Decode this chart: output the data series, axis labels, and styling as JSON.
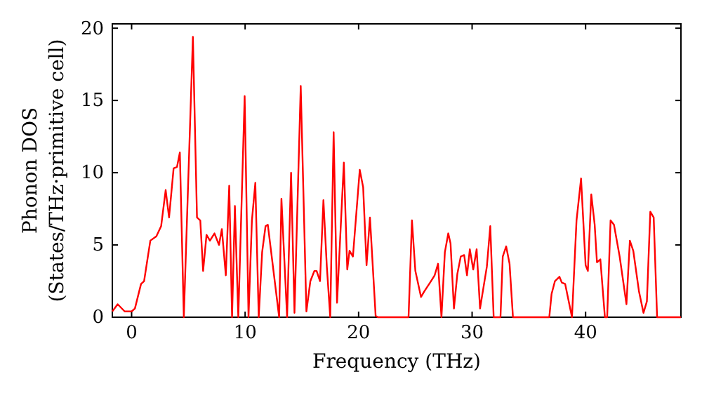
{
  "chart_data": {
    "type": "line",
    "xlabel": "Frequency (THz)",
    "ylabel": "Phonon DOS\n(States/THz·primitive cell)",
    "xlim": [
      -1.7,
      48.4
    ],
    "ylim": [
      0,
      20.3
    ],
    "xticks": [
      0,
      10,
      20,
      30,
      40
    ],
    "yticks": [
      0,
      5,
      10,
      15,
      20
    ],
    "marker": "none",
    "line_style": "solid",
    "series": [
      {
        "color": "#ff0000",
        "x": [
          -1.7,
          -1.23,
          -0.61,
          0,
          0.29,
          0.83,
          1.1,
          1.65,
          2.18,
          2.6,
          3.0,
          3.3,
          3.7,
          4.0,
          4.25,
          4.6,
          5.4,
          5.76,
          6.05,
          6.3,
          6.6,
          6.9,
          7.3,
          7.7,
          7.95,
          8.3,
          8.6,
          8.85,
          9.1,
          9.4,
          9.96,
          10.3,
          10.6,
          10.9,
          11.2,
          11.5,
          11.8,
          12.0,
          13.0,
          13.2,
          13.7,
          14.05,
          14.35,
          14.9,
          15.4,
          15.75,
          16.1,
          16.3,
          16.6,
          16.9,
          17.2,
          17.5,
          17.8,
          18.1,
          18.7,
          19.0,
          19.2,
          19.5,
          20.1,
          20.4,
          20.7,
          21.0,
          21.5,
          21.7,
          24.4,
          24.7,
          25.0,
          25.5,
          25.8,
          26.3,
          26.7,
          27.0,
          27.3,
          27.6,
          27.9,
          28.1,
          28.4,
          28.7,
          29.0,
          29.3,
          29.55,
          29.8,
          30.1,
          30.4,
          30.7,
          31.3,
          31.6,
          31.9,
          32.5,
          32.7,
          33.0,
          33.3,
          33.6,
          36.8,
          37.0,
          37.3,
          37.7,
          37.9,
          38.2,
          38.8,
          39.2,
          39.6,
          40.0,
          40.2,
          40.5,
          40.8,
          41.0,
          41.3,
          41.7,
          41.9,
          42.2,
          42.5,
          43.0,
          43.6,
          43.9,
          44.2,
          44.7,
          45.1,
          45.4,
          45.7,
          46.0,
          46.3,
          48.4
        ],
        "values": [
          0.4,
          0.9,
          0.4,
          0.4,
          0.6,
          2.3,
          2.5,
          5.3,
          5.6,
          6.3,
          8.8,
          6.9,
          10.3,
          10.4,
          11.4,
          0,
          19.4,
          6.9,
          6.7,
          3.2,
          5.7,
          5.3,
          5.8,
          5.0,
          6.1,
          2.9,
          9.1,
          0,
          7.7,
          0,
          15.3,
          0,
          6.7,
          9.3,
          0,
          4.5,
          6.3,
          6.4,
          0,
          8.2,
          0,
          10.0,
          0.3,
          16.0,
          0.4,
          2.5,
          3.2,
          3.2,
          2.5,
          8.1,
          3.5,
          0,
          12.8,
          1.0,
          10.7,
          3.3,
          4.6,
          4.2,
          10.2,
          9.0,
          3.6,
          6.9,
          0.1,
          0,
          0,
          6.7,
          3.2,
          1.4,
          1.8,
          2.4,
          2.9,
          3.7,
          0,
          4.5,
          5.8,
          5.1,
          0.6,
          3.0,
          4.2,
          4.3,
          2.9,
          4.7,
          3.3,
          4.7,
          0.6,
          3.5,
          6.3,
          0,
          0,
          4.2,
          4.9,
          3.7,
          0,
          0,
          1.6,
          2.5,
          2.8,
          2.4,
          2.3,
          0,
          6.7,
          9.6,
          3.6,
          3.2,
          8.5,
          6.4,
          3.8,
          4.0,
          0,
          0,
          6.7,
          6.4,
          4.2,
          0.9,
          5.3,
          4.6,
          1.8,
          0.3,
          1.1,
          7.3,
          6.9,
          0,
          0
        ]
      }
    ]
  }
}
